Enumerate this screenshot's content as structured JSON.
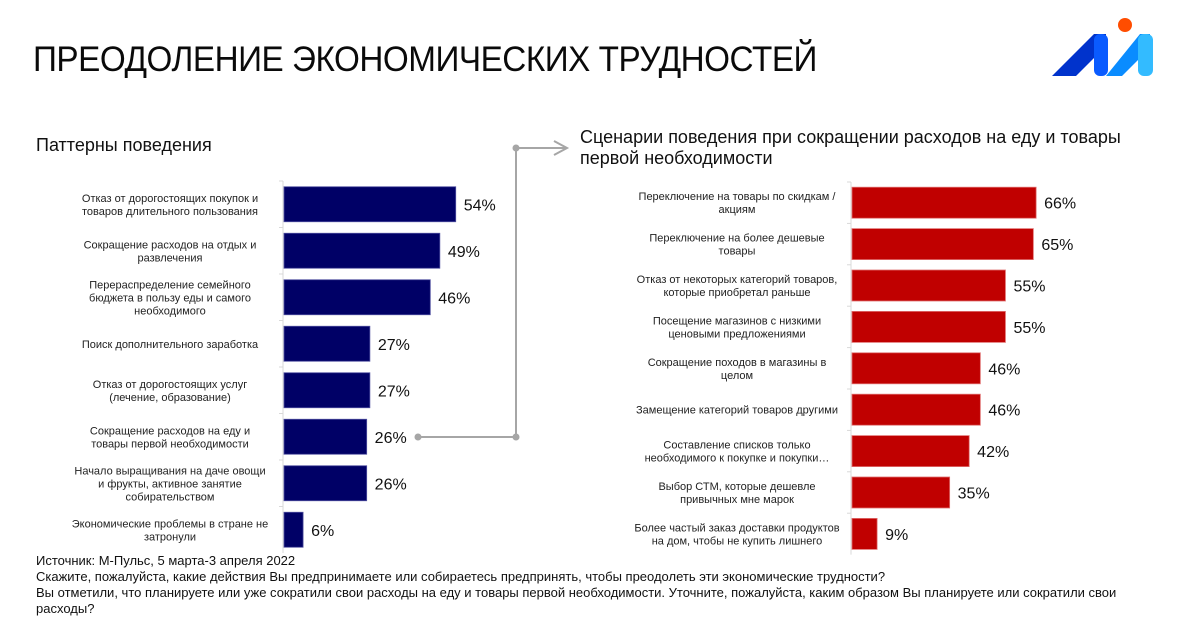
{
  "page": {
    "title": "ПРЕОДОЛЕНИЕ ЭКОНОМИЧЕСКИХ ТРУДНОСТЕЙ",
    "logo": "m-logo-icon"
  },
  "colors": {
    "left_bar": "#000066",
    "right_bar": "#C00000",
    "connector": "#A6A6A6",
    "logo_dark": "#0033CC",
    "logo_mid": "#0A5BFF",
    "logo_light": "#33BBFF",
    "logo_dot": "#FF4D00"
  },
  "chart_data": [
    {
      "type": "bar",
      "orientation": "horizontal",
      "title": "Паттерны поведения",
      "categories": [
        "Отказ от дорогостоящих покупок и товаров длительного пользования",
        "Сокращение расходов на отдых и развлечения",
        "Перераспределение семейного бюджета в пользу еды и самого необходимого",
        "Поиск дополнительного заработка",
        "Отказ от дорогостоящих услуг (лечение, образование)",
        "Сокращение расходов на еду и товары первой необходимости",
        "Начало выращивания на даче овощи и фрукты, активное занятие собирательством",
        "Экономические проблемы в стране не затронули"
      ],
      "label_lines": [
        [
          "Отказ от дорогостоящих покупок и",
          "товаров длительного пользования"
        ],
        [
          "Сокращение расходов на отдых и",
          "развлечения"
        ],
        [
          "Перераспределение семейного",
          "бюджета в пользу еды и самого",
          "необходимого"
        ],
        [
          "Поиск дополнительного заработка"
        ],
        [
          "Отказ от дорогостоящих услуг",
          "(лечение, образование)"
        ],
        [
          "Сокращение расходов на еду и",
          "товары первой необходимости"
        ],
        [
          "Начало выращивания на даче овощи",
          "и фрукты, активное занятие",
          "собирательством"
        ],
        [
          "Экономические проблемы в стране не",
          "затронули"
        ]
      ],
      "values": [
        54,
        49,
        46,
        27,
        27,
        26,
        26,
        6
      ],
      "value_labels": [
        "54%",
        "49%",
        "46%",
        "27%",
        "27%",
        "26%",
        "26%",
        "6%"
      ],
      "xlim": [
        0,
        100
      ],
      "unit": "%",
      "grid": false,
      "highlighted_category_index": 5
    },
    {
      "type": "bar",
      "orientation": "horizontal",
      "title": "Сценарии поведения при сокращении расходов на еду и товары первой необходимости",
      "categories": [
        "Переключение на товары по скидкам / акциям",
        "Переключение на более дешевые товары",
        "Отказ от некоторых категорий товаров, которые приобретал раньше",
        "Посещение магазинов с низкими ценовыми предложениями",
        "Сокращение походов в магазины в целом",
        "Замещение категорий товаров другими",
        "Составление списков только необходимого к покупке и покупки…",
        "Выбор СТМ, которые дешевле привычных мне марок",
        "Более частый заказ доставки продуктов на дом, чтобы не купить лишнего"
      ],
      "label_lines": [
        [
          "Переключение на товары по скидкам /",
          "акциям"
        ],
        [
          "Переключение на более дешевые",
          "товары"
        ],
        [
          "Отказ от некоторых категорий товаров,",
          "которые приобретал раньше"
        ],
        [
          "Посещение магазинов с низкими",
          "ценовыми предложениями"
        ],
        [
          "Сокращение походов в магазины в",
          "целом"
        ],
        [
          "Замещение категорий товаров другими"
        ],
        [
          "Составление списков только",
          "необходимого к покупке и покупки…"
        ],
        [
          "Выбор СТМ, которые дешевле",
          "привычных мне марок"
        ],
        [
          "Более частый заказ доставки продуктов",
          "на дом, чтобы не купить лишнего"
        ]
      ],
      "values": [
        66,
        65,
        55,
        55,
        46,
        46,
        42,
        35,
        9
      ],
      "value_labels": [
        "66%",
        "65%",
        "55%",
        "55%",
        "46%",
        "46%",
        "42%",
        "35%",
        "9%"
      ],
      "xlim": [
        0,
        100
      ],
      "unit": "%",
      "grid": false
    }
  ],
  "footer": {
    "source": "Источник: М-Пульс, 5 марта-3 апреля 2022",
    "question1": "Скажите, пожалуйста, какие действия Вы предпринимаете или собираетесь предпринять, чтобы преодолеть эти экономические трудности?",
    "question2": "Вы отметили, что планируете или уже сократили свои расходы на еду и товары первой необходимости. Уточните, пожалуйста, каким образом Вы планируете или сократили свои расходы?"
  }
}
